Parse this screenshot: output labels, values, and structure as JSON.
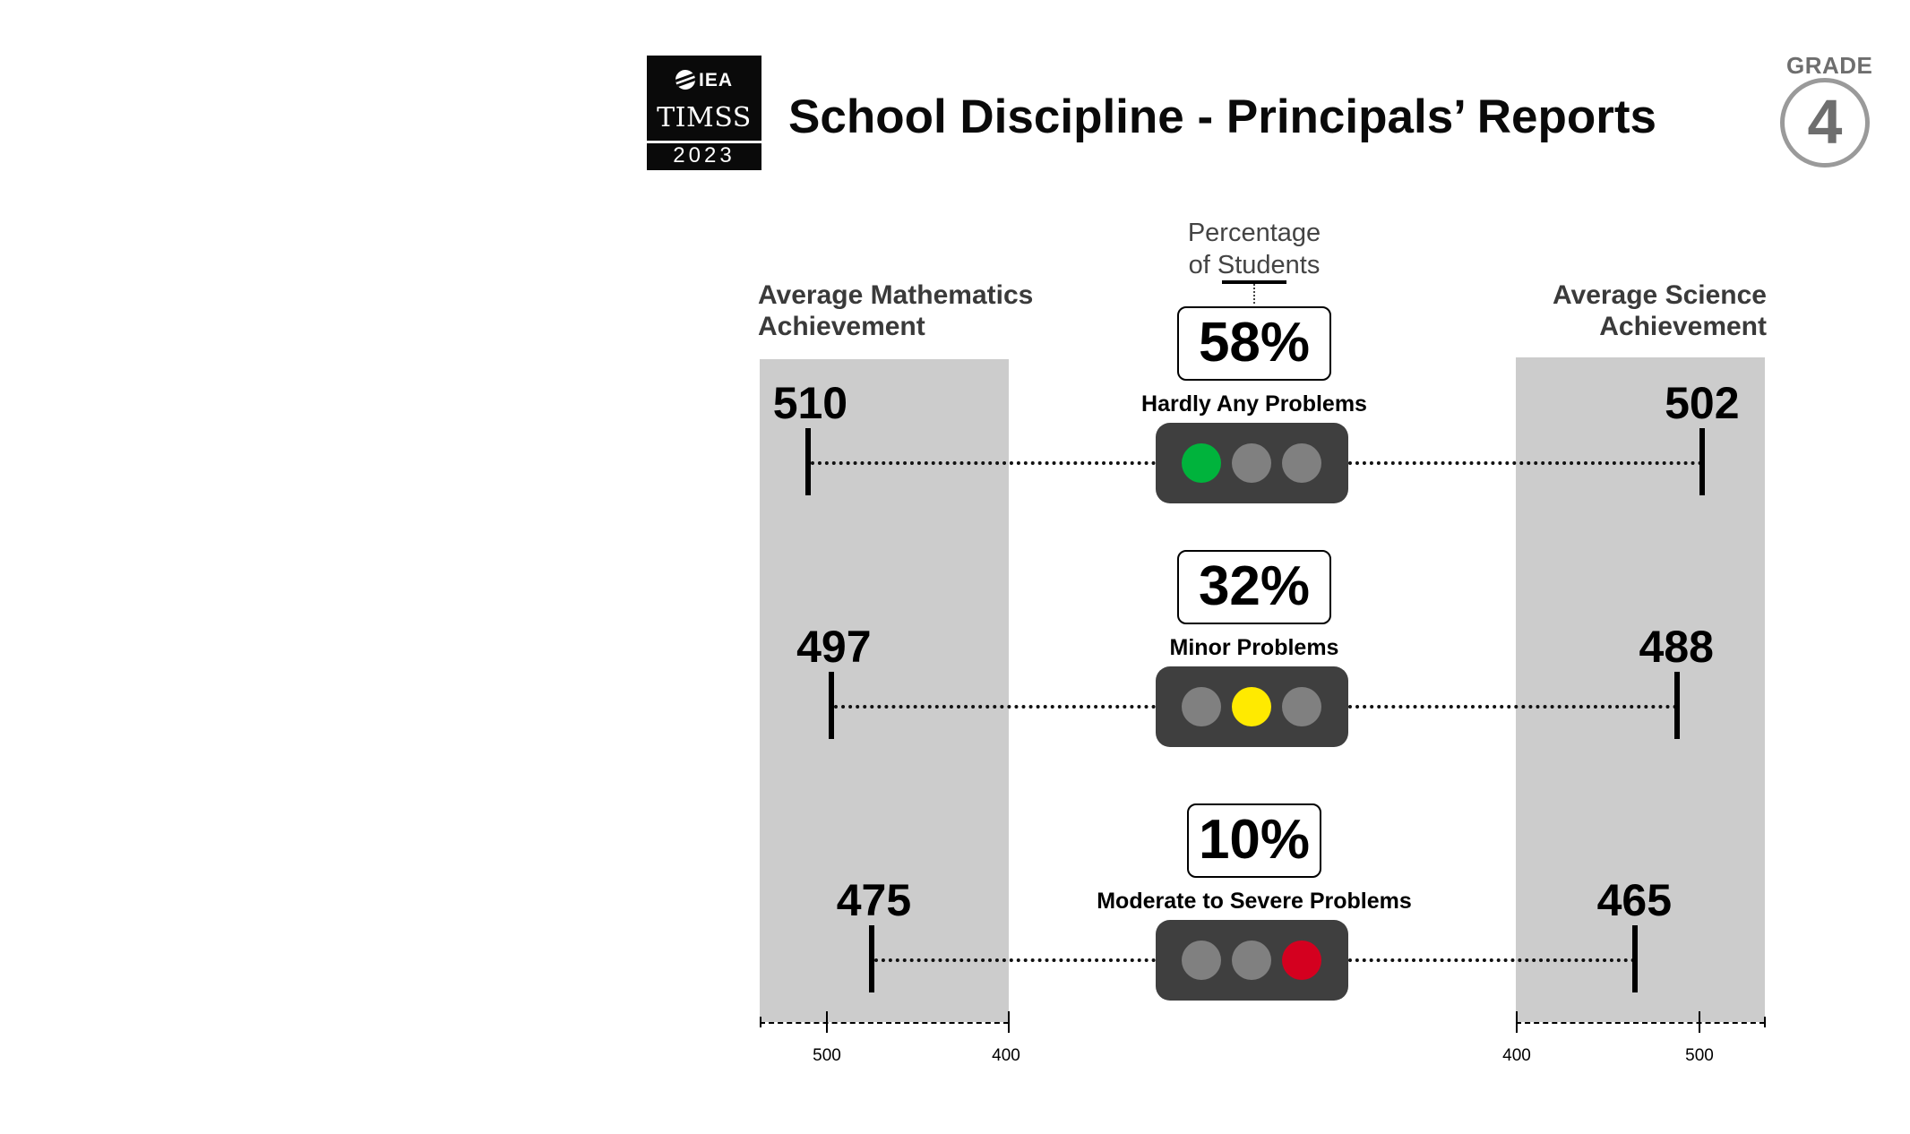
{
  "header": {
    "logo": {
      "org": "IEA",
      "name": "TIMSS",
      "year": "2023"
    },
    "title": "School Discipline - Principals’ Reports",
    "grade_label": "GRADE",
    "grade_value": "4"
  },
  "percentage_label_line1": "Percentage",
  "percentage_label_line2": "of Students",
  "math_label_line1": "Average Mathematics",
  "math_label_line2": "Achievement",
  "science_label_line1": "Average Science",
  "science_label_line2": "Achievement",
  "colors": {
    "lamp_off": "#808080",
    "green": "#00b33c",
    "yellow": "#ffea00",
    "red": "#d4001f",
    "band": "#cccccc"
  },
  "rows": [
    {
      "category": "Hardly Any Problems",
      "percent": "58%",
      "math": "510",
      "science": "502",
      "light": "green"
    },
    {
      "category": "Minor Problems",
      "percent": "32%",
      "math": "497",
      "science": "488",
      "light": "yellow"
    },
    {
      "category": "Moderate to Severe Problems",
      "percent": "10%",
      "math": "475",
      "science": "465",
      "light": "red"
    }
  ],
  "axes": {
    "math": {
      "ticks": [
        "500",
        "400"
      ]
    },
    "science": {
      "ticks": [
        "400",
        "500"
      ]
    }
  },
  "chart_data": {
    "type": "table",
    "title": "School Discipline - Principals’ Reports",
    "categories": [
      "Hardly Any Problems",
      "Minor Problems",
      "Moderate to Severe Problems"
    ],
    "series": [
      {
        "name": "Percentage of Students",
        "values": [
          58,
          32,
          10
        ]
      },
      {
        "name": "Average Mathematics Achievement",
        "values": [
          510,
          497,
          475
        ]
      },
      {
        "name": "Average Science Achievement",
        "values": [
          502,
          488,
          465
        ]
      }
    ],
    "math_axis": {
      "ticks": [
        500,
        400
      ],
      "direction": "reversed"
    },
    "science_axis": {
      "ticks": [
        400,
        500
      ]
    }
  }
}
